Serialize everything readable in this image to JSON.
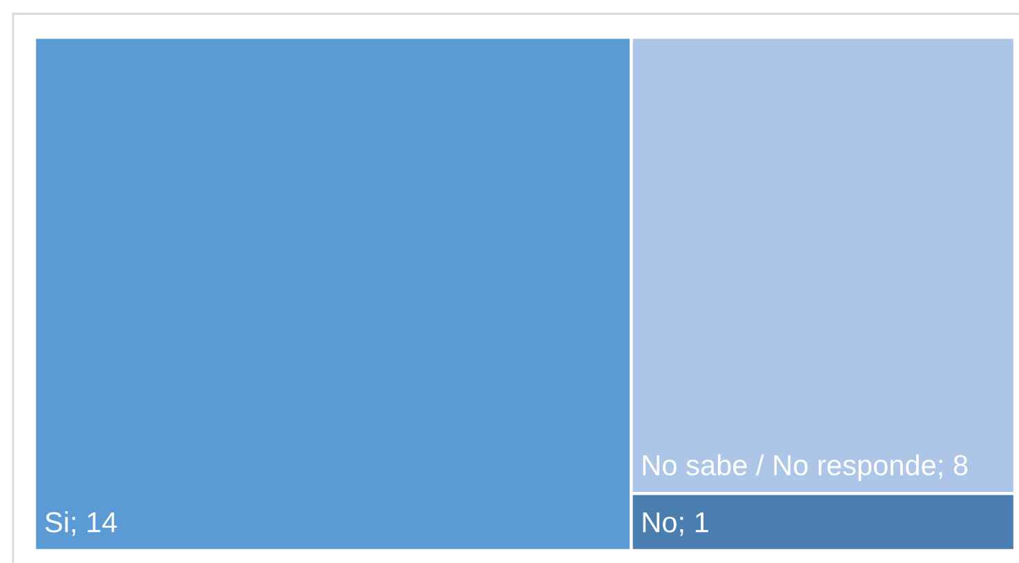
{
  "chart_data": {
    "type": "other",
    "categories": [
      "Si",
      "No sabe / No responde",
      "No"
    ],
    "values": [
      14,
      8,
      1
    ],
    "value_labels": [
      "; 14",
      "; 8",
      "; 1"
    ],
    "colors": [
      "#5b9bd5",
      "#adc5e6",
      "#4a7db0"
    ]
  }
}
